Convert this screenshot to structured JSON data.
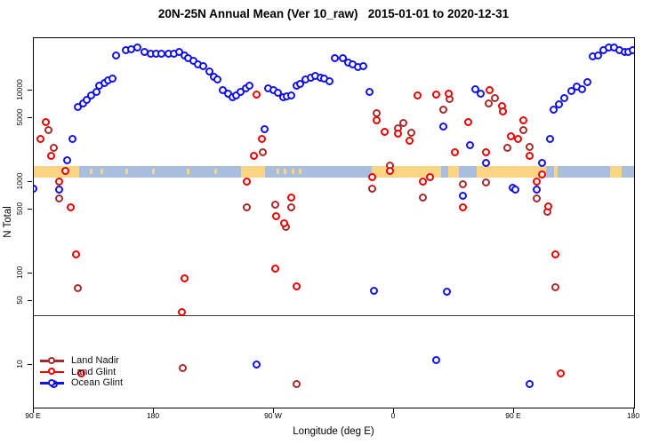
{
  "title": "20N-25N Annual Mean (Ver 10_raw)   2015-01-01 to 2020-12-31",
  "axes": {
    "y_label": "N Total",
    "x_label": "Longitude (deg E)",
    "y_ticks": [
      {
        "v": 10,
        "label": "10"
      },
      {
        "v": 50,
        "label": "50"
      },
      {
        "v": 100,
        "label": "100"
      },
      {
        "v": 500,
        "label": "500"
      },
      {
        "v": 1000,
        "label": "1000"
      },
      {
        "v": 5000,
        "label": "5000"
      },
      {
        "v": 10000,
        "label": "10000"
      }
    ],
    "x_ticks": [
      {
        "deg": 90,
        "label": "90 E"
      },
      {
        "deg": 180,
        "label": "180"
      },
      {
        "deg": 270,
        "label": "90 W"
      },
      {
        "deg": 360,
        "label": "0"
      },
      {
        "deg": 450,
        "label": "90 E"
      },
      {
        "deg": 540,
        "label": "180"
      }
    ]
  },
  "legend": {
    "items": [
      {
        "label": "Land Nadir",
        "series": "land_nadir"
      },
      {
        "label": "Land Glint",
        "series": "land_glint"
      },
      {
        "label": "Ocean Glint",
        "series": "ocean_glint"
      }
    ]
  },
  "colors": {
    "land_nadir": "#A52A2A",
    "land_glint": "#EE0000",
    "ocean_glint": "#1111EE",
    "map_ocean": "#A9BDDC",
    "map_land": "#FBD584",
    "threshold_line": "#3a3a3a",
    "axis": "#000000"
  },
  "chart_data": {
    "type": "scatter",
    "title": "20N-25N Annual Mean (Ver 10_raw)   2015-01-01 to 2020-12-31",
    "xlabel": "Longitude (deg E)",
    "ylabel": "N Total",
    "x_axis": {
      "range_deg": [
        90,
        540
      ],
      "wrapped_longitude": true,
      "tick_degs": [
        90,
        180,
        270,
        360,
        450,
        540
      ],
      "tick_labels": [
        "90 E",
        "180",
        "90 W",
        "0",
        "90 E",
        "180"
      ]
    },
    "y_axis": {
      "scale": "log10",
      "ticks": [
        10,
        50,
        100,
        500,
        1000,
        5000,
        10000
      ],
      "range": [
        3.5,
        37000
      ]
    },
    "threshold_line_value": 35,
    "map_strip": {
      "description": "land/ocean map band for the 20N-25N latitude strip",
      "land_segments_frac": [
        [
          0.0,
          0.0756
        ],
        [
          0.3452,
          0.3852
        ],
        [
          0.563,
          0.678
        ],
        [
          0.69,
          0.708
        ],
        [
          0.738,
          0.853
        ],
        [
          0.867,
          0.873
        ],
        [
          0.96,
          0.979
        ]
      ],
      "island_specks_frac": [
        0.093,
        0.111,
        0.153,
        0.197,
        0.255,
        0.301,
        0.404,
        0.416,
        0.43,
        0.441
      ]
    },
    "series": [
      {
        "name": "Land Nadir",
        "key": "land_nadir",
        "points": [
          [
            101,
            3600
          ],
          [
            105,
            2300
          ],
          [
            109,
            650
          ],
          [
            123,
            68
          ],
          [
            202,
            9
          ],
          [
            250,
            520
          ],
          [
            262,
            2100
          ],
          [
            271,
            550
          ],
          [
            279,
            320
          ],
          [
            283,
            520
          ],
          [
            287,
            6
          ],
          [
            344,
            830
          ],
          [
            347,
            5500
          ],
          [
            357,
            1500
          ],
          [
            363,
            3800
          ],
          [
            367,
            4300
          ],
          [
            373,
            3400
          ],
          [
            382,
            660
          ],
          [
            397,
            6100
          ],
          [
            402,
            8000
          ],
          [
            412,
            930
          ],
          [
            429,
            970
          ],
          [
            431,
            7100
          ],
          [
            436,
            8100
          ],
          [
            445,
            2300
          ],
          [
            457,
            3600
          ],
          [
            462,
            2400
          ],
          [
            467,
            650
          ],
          [
            475,
            460
          ],
          [
            481,
            70
          ]
        ]
      },
      {
        "name": "Land Glint",
        "key": "land_glint",
        "points": [
          [
            95,
            2900
          ],
          [
            99,
            4400
          ],
          [
            103,
            1900
          ],
          [
            109,
            1000
          ],
          [
            114,
            1300
          ],
          [
            118,
            520
          ],
          [
            122,
            160
          ],
          [
            126,
            8
          ],
          [
            201,
            37
          ],
          [
            203,
            87
          ],
          [
            250,
            1000
          ],
          [
            255,
            1900
          ],
          [
            257,
            8800
          ],
          [
            261,
            2900
          ],
          [
            271,
            110
          ],
          [
            272,
            420
          ],
          [
            278,
            350
          ],
          [
            283,
            670
          ],
          [
            287,
            71
          ],
          [
            344,
            1100
          ],
          [
            347,
            4700
          ],
          [
            353,
            3500
          ],
          [
            357,
            1300
          ],
          [
            363,
            3300
          ],
          [
            372,
            2800
          ],
          [
            378,
            8600
          ],
          [
            382,
            1000
          ],
          [
            387,
            1100
          ],
          [
            392,
            8800
          ],
          [
            401,
            9100
          ],
          [
            406,
            2100
          ],
          [
            412,
            520
          ],
          [
            416,
            4400
          ],
          [
            429,
            2100
          ],
          [
            432,
            9900
          ],
          [
            441,
            6700
          ],
          [
            442,
            5800
          ],
          [
            448,
            3100
          ],
          [
            453,
            2900
          ],
          [
            457,
            4700
          ],
          [
            462,
            1900
          ],
          [
            467,
            1000
          ],
          [
            471,
            1200
          ],
          [
            476,
            530
          ],
          [
            481,
            160
          ],
          [
            485,
            8
          ]
        ]
      },
      {
        "name": "Ocean Glint",
        "key": "ocean_glint",
        "points": [
          [
            152,
            24000
          ],
          [
            159,
            27000
          ],
          [
            163,
            28000
          ],
          [
            168,
            29000
          ],
          [
            173,
            26000
          ],
          [
            178,
            25000
          ],
          [
            182,
            25000
          ],
          [
            186,
            25000
          ],
          [
            191,
            25000
          ],
          [
            195,
            25000
          ],
          [
            199,
            26000
          ],
          [
            203,
            24000
          ],
          [
            206,
            22000
          ],
          [
            210,
            21000
          ],
          [
            213,
            19000
          ],
          [
            217,
            18000
          ],
          [
            222,
            16000
          ],
          [
            225,
            14000
          ],
          [
            228,
            13000
          ],
          [
            232,
            9900
          ],
          [
            236,
            9100
          ],
          [
            239,
            8300
          ],
          [
            242,
            8700
          ],
          [
            245,
            9500
          ],
          [
            249,
            10400
          ],
          [
            252,
            11100
          ],
          [
            266,
            10400
          ],
          [
            270,
            9900
          ],
          [
            273,
            9300
          ],
          [
            277,
            8300
          ],
          [
            280,
            8500
          ],
          [
            283,
            8700
          ],
          [
            287,
            11100
          ],
          [
            290,
            11600
          ],
          [
            294,
            13100
          ],
          [
            298,
            13700
          ],
          [
            301,
            14200
          ],
          [
            305,
            13700
          ],
          [
            308,
            13400
          ],
          [
            312,
            12500
          ],
          [
            316,
            22000
          ],
          [
            322,
            22000
          ],
          [
            326,
            20000
          ],
          [
            329,
            19000
          ],
          [
            333,
            17600
          ],
          [
            337,
            18000
          ],
          [
            123,
            6500
          ],
          [
            127,
            7100
          ],
          [
            130,
            7800
          ],
          [
            133,
            8700
          ],
          [
            137,
            9500
          ],
          [
            139,
            11100
          ],
          [
            143,
            12000
          ],
          [
            146,
            12800
          ],
          [
            149,
            13400
          ],
          [
            480,
            6100
          ],
          [
            484,
            7000
          ],
          [
            488,
            8200
          ],
          [
            493,
            9800
          ],
          [
            497,
            10900
          ],
          [
            501,
            10200
          ],
          [
            505,
            12200
          ],
          [
            509,
            23000
          ],
          [
            513,
            24000
          ],
          [
            517,
            27000
          ],
          [
            521,
            29000
          ],
          [
            525,
            29000
          ],
          [
            529,
            27000
          ],
          [
            533,
            26000
          ],
          [
            536,
            26000
          ],
          [
            539,
            27000
          ],
          [
            90,
            840
          ],
          [
            105,
            6
          ],
          [
            109,
            820
          ],
          [
            115,
            1700
          ],
          [
            119,
            2900
          ],
          [
            257,
            10
          ],
          [
            263,
            3700
          ],
          [
            342,
            9600
          ],
          [
            345,
            63
          ],
          [
            392,
            11
          ],
          [
            397,
            4000
          ],
          [
            400,
            62
          ],
          [
            412,
            700
          ],
          [
            417,
            2500
          ],
          [
            421,
            10200
          ],
          [
            425,
            9100
          ],
          [
            429,
            1600
          ],
          [
            449,
            850
          ],
          [
            451,
            820
          ],
          [
            462,
            6
          ],
          [
            467,
            820
          ],
          [
            471,
            1600
          ],
          [
            477,
            2900
          ]
        ]
      }
    ]
  }
}
